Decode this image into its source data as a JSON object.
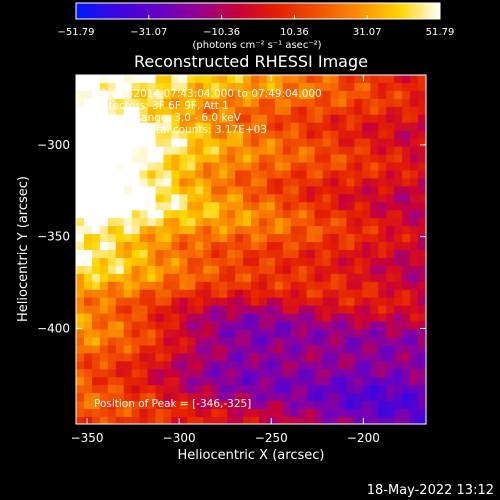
{
  "chart_data": {
    "type": "heatmap",
    "title": "Reconstructed RHESSI Image",
    "xlabel": "Heliocentric X (arcsec)",
    "ylabel": "Heliocentric Y (arcsec)",
    "xlim": [
      -356,
      -166
    ],
    "ylim": [
      -452,
      -262
    ],
    "x_ticks": [
      -350,
      -300,
      -250,
      -200
    ],
    "x_tick_labels": [
      "−350",
      "−300",
      "−250",
      "−200"
    ],
    "y_ticks": [
      -300,
      -350,
      -400
    ],
    "y_tick_labels": [
      "−300",
      "−350",
      "−400"
    ],
    "colorbar": {
      "min": -51.79,
      "max": 51.79,
      "tick_values": [
        -51.79,
        -31.07,
        -10.36,
        10.36,
        31.07,
        51.79
      ],
      "tick_labels": [
        "−51.79",
        "−31.07",
        "−10.36",
        "10.36",
        "31.07",
        "51.79"
      ],
      "units": "(photons cm⁻² s⁻¹ asec⁻²)",
      "colors": [
        "#0018ff",
        "#3a06e0",
        "#6200c8",
        "#930092",
        "#c8003a",
        "#e42000",
        "#f25200",
        "#fb8e00",
        "#ffd400",
        "#ffffff"
      ]
    },
    "annotations": {
      "time_range": "22-Oct-2014 07:43:04.000 to 07:49:04.000",
      "detectors": "Detectors: 3F 6F 9F, Att 1",
      "energy": "Energy Range: 3.0 - 6.0 keV",
      "clean": "Clean",
      "counts": "Total counts: 3.17E+03",
      "peak": "Position of Peak = [-346,-325]"
    }
  },
  "footer": {
    "timestamp": "18-May-2022 13:12"
  }
}
